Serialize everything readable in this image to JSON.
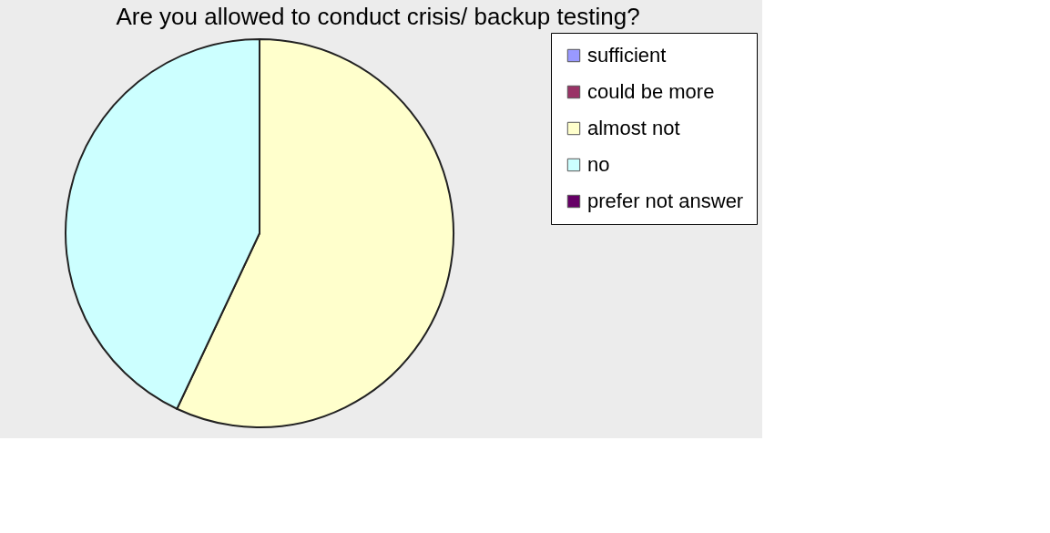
{
  "chart_data": {
    "type": "pie",
    "title": "Are you allowed to conduct crisis/ backup testing?",
    "categories": [
      "sufficient",
      "could be more",
      "almost not",
      "no",
      "prefer not answer"
    ],
    "values": [
      0,
      0,
      57,
      43,
      0
    ],
    "colors": [
      "#9999ff",
      "#993366",
      "#ffffcc",
      "#ccffff",
      "#660066"
    ],
    "legend": "right"
  }
}
